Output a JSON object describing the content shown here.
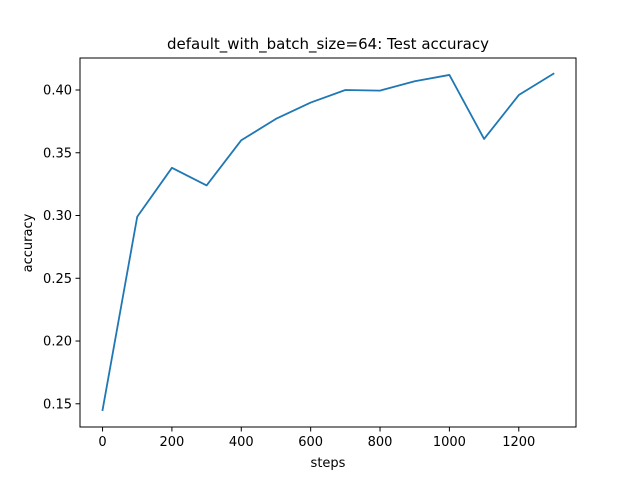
{
  "chart_data": {
    "type": "line",
    "title": "default_with_batch_size=64: Test accuracy",
    "xlabel": "steps",
    "ylabel": "accuracy",
    "xlim": [
      -65,
      1365
    ],
    "ylim": [
      0.1315,
      0.4255
    ],
    "xticks": [
      0,
      200,
      400,
      600,
      800,
      1000,
      1200
    ],
    "xtick_labels": [
      "0",
      "200",
      "400",
      "600",
      "800",
      "1000",
      "1200"
    ],
    "yticks": [
      0.15,
      0.2,
      0.25,
      0.3,
      0.35,
      0.4
    ],
    "ytick_labels": [
      "0.15",
      "0.20",
      "0.25",
      "0.30",
      "0.35",
      "0.40"
    ],
    "grid": false,
    "series": [
      {
        "color": "#1f77b4",
        "x": [
          0,
          100,
          200,
          300,
          400,
          500,
          600,
          700,
          800,
          900,
          1000,
          1100,
          1200,
          1300
        ],
        "y": [
          0.145,
          0.299,
          0.338,
          0.324,
          0.36,
          0.377,
          0.39,
          0.4,
          0.3995,
          0.407,
          0.412,
          0.361,
          0.396,
          0.413
        ]
      }
    ]
  }
}
